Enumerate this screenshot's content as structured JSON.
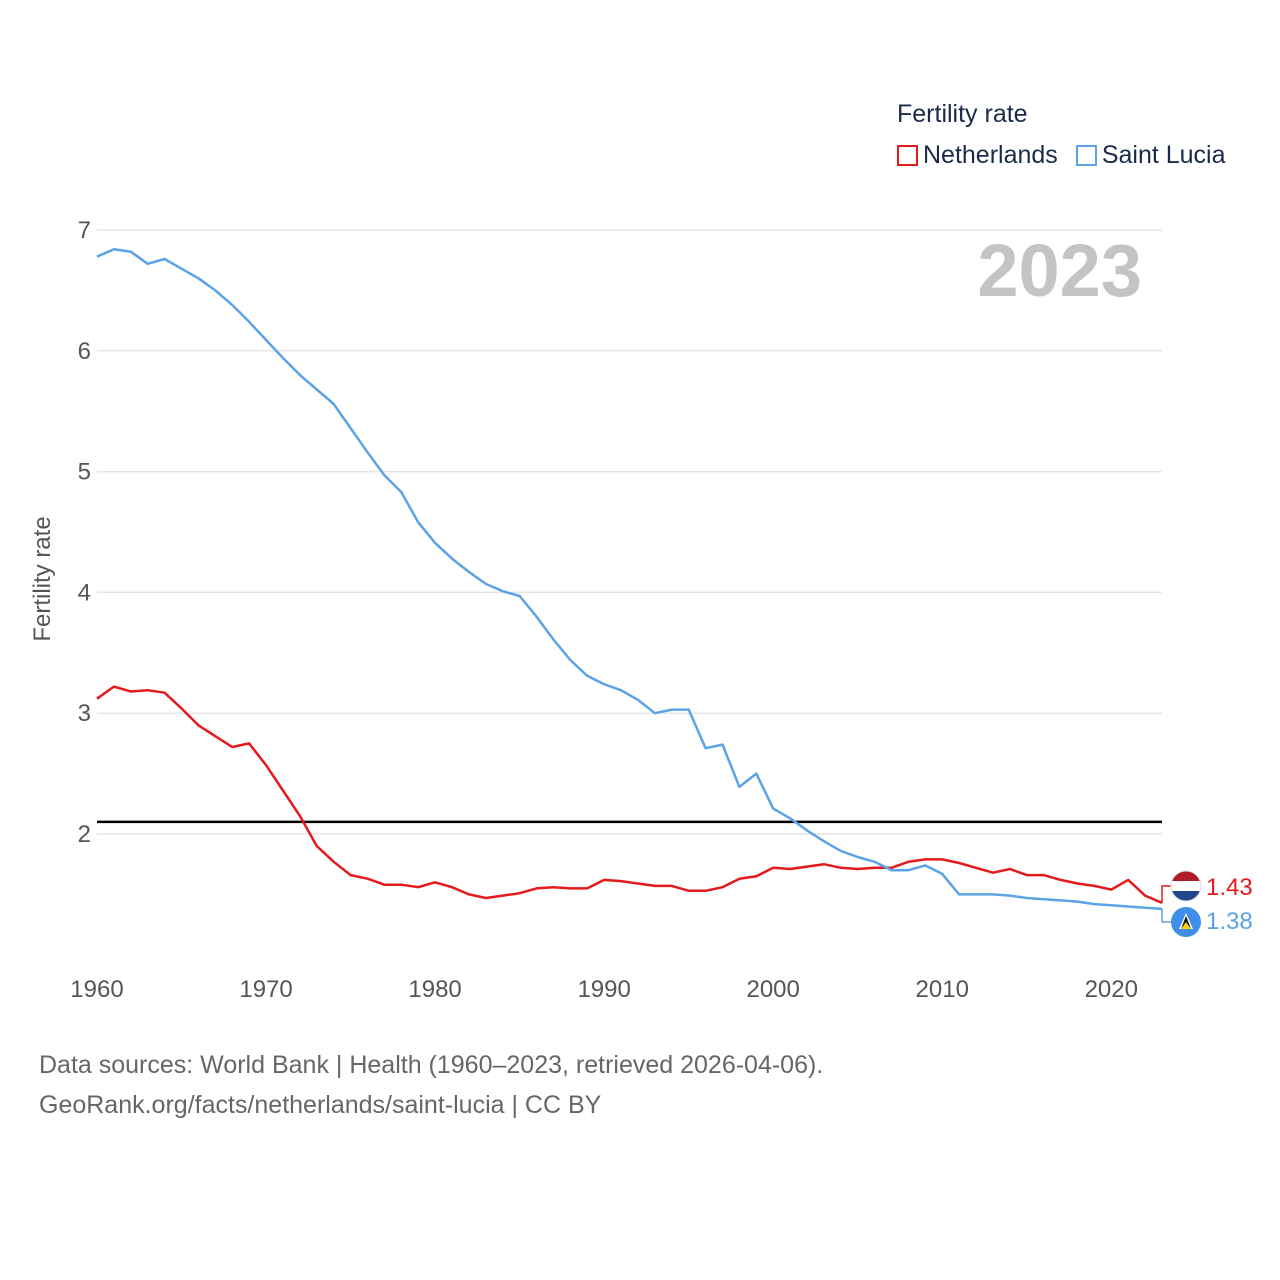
{
  "legend": {
    "title": "Fertility rate",
    "items": [
      {
        "label": "Netherlands",
        "color": "#e41a1c"
      },
      {
        "label": "Saint Lucia",
        "color": "#5ba3e6"
      }
    ]
  },
  "year_label": "2023",
  "source": {
    "line1": "Data sources: World Bank | Health (1960–2023, retrieved 2026-04-06).",
    "line2": "GeoRank.org/facts/netherlands/saint-lucia | CC BY"
  },
  "chart_data": {
    "type": "line",
    "title": "Fertility rate",
    "xlabel": "",
    "ylabel": "Fertility rate",
    "xlim": [
      1960,
      2023
    ],
    "ylim": [
      1,
      7
    ],
    "x_ticks": [
      1960,
      1970,
      1980,
      1990,
      2000,
      2010,
      2020
    ],
    "y_ticks": [
      2,
      3,
      4,
      5,
      6,
      7
    ],
    "grid": true,
    "legend_position": "top-right",
    "reference_line": {
      "y": 2.1,
      "color": "#000000"
    },
    "x": [
      1960,
      1961,
      1962,
      1963,
      1964,
      1965,
      1966,
      1967,
      1968,
      1969,
      1970,
      1971,
      1972,
      1973,
      1974,
      1975,
      1976,
      1977,
      1978,
      1979,
      1980,
      1981,
      1982,
      1983,
      1984,
      1985,
      1986,
      1987,
      1988,
      1989,
      1990,
      1991,
      1992,
      1993,
      1994,
      1995,
      1996,
      1997,
      1998,
      1999,
      2000,
      2001,
      2002,
      2003,
      2004,
      2005,
      2006,
      2007,
      2008,
      2009,
      2010,
      2011,
      2012,
      2013,
      2014,
      2015,
      2016,
      2017,
      2018,
      2019,
      2020,
      2021,
      2022,
      2023
    ],
    "series": [
      {
        "name": "Netherlands",
        "color": "#e41a1c",
        "end_label": "1.43",
        "values": [
          3.12,
          3.22,
          3.18,
          3.19,
          3.17,
          3.04,
          2.9,
          2.81,
          2.72,
          2.75,
          2.57,
          2.36,
          2.15,
          1.9,
          1.77,
          1.66,
          1.63,
          1.58,
          1.58,
          1.56,
          1.6,
          1.56,
          1.5,
          1.47,
          1.49,
          1.51,
          1.55,
          1.56,
          1.55,
          1.55,
          1.62,
          1.61,
          1.59,
          1.57,
          1.57,
          1.53,
          1.53,
          1.56,
          1.63,
          1.65,
          1.72,
          1.71,
          1.73,
          1.75,
          1.72,
          1.71,
          1.72,
          1.72,
          1.77,
          1.79,
          1.79,
          1.76,
          1.72,
          1.68,
          1.71,
          1.66,
          1.66,
          1.62,
          1.59,
          1.57,
          1.54,
          1.62,
          1.49,
          1.43
        ]
      },
      {
        "name": "Saint Lucia",
        "color": "#5ba3e6",
        "end_label": "1.38",
        "values": [
          6.78,
          6.84,
          6.82,
          6.72,
          6.76,
          6.68,
          6.6,
          6.5,
          6.38,
          6.24,
          6.09,
          5.94,
          5.8,
          5.68,
          5.56,
          5.36,
          5.16,
          4.97,
          4.83,
          4.58,
          4.41,
          4.28,
          4.17,
          4.07,
          4.01,
          3.97,
          3.8,
          3.61,
          3.44,
          3.31,
          3.24,
          3.19,
          3.11,
          3.0,
          3.03,
          3.03,
          2.71,
          2.74,
          2.39,
          2.5,
          2.21,
          2.13,
          2.03,
          1.94,
          1.86,
          1.81,
          1.77,
          1.7,
          1.7,
          1.74,
          1.67,
          1.5,
          1.5,
          1.5,
          1.49,
          1.47,
          1.46,
          1.45,
          1.44,
          1.42,
          1.41,
          1.4,
          1.39,
          1.38
        ]
      }
    ]
  }
}
